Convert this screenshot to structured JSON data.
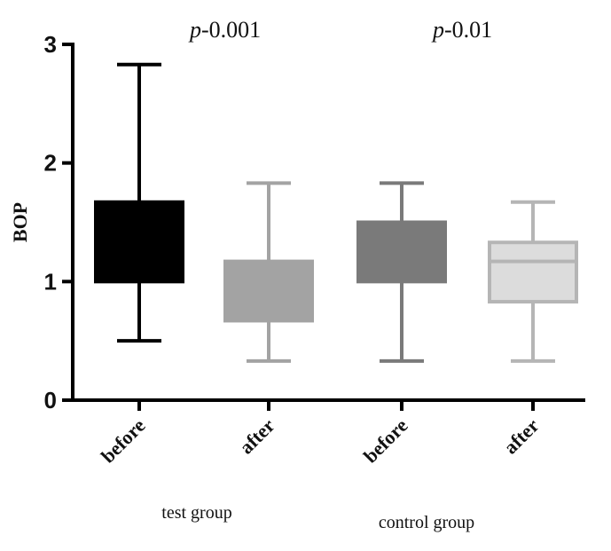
{
  "chart_data": {
    "type": "box",
    "ylabel": "BOP",
    "ylim": [
      0,
      3
    ],
    "yticks": [
      0,
      1,
      2,
      3
    ],
    "grid": false,
    "categories": [
      "before",
      "after",
      "before",
      "after"
    ],
    "groups": [
      {
        "label": "test group",
        "members": [
          0,
          1
        ]
      },
      {
        "label": "control group",
        "members": [
          2,
          3
        ]
      }
    ],
    "boxes": [
      {
        "category": "before",
        "group": "test group",
        "min": 0.5,
        "q1": 1.0,
        "median": 1.0,
        "q3": 1.67,
        "max": 2.83,
        "fill": "#000000",
        "stroke": "#000000"
      },
      {
        "category": "after",
        "group": "test group",
        "min": 0.33,
        "q1": 0.67,
        "median": 0.67,
        "q3": 1.17,
        "max": 1.83,
        "fill": "#a3a3a3",
        "stroke": "#a3a3a3"
      },
      {
        "category": "before",
        "group": "control group",
        "min": 0.33,
        "q1": 1.0,
        "median": 1.0,
        "q3": 1.5,
        "max": 1.83,
        "fill": "#7a7a7a",
        "stroke": "#7a7a7a"
      },
      {
        "category": "after",
        "group": "control group",
        "min": 0.33,
        "q1": 0.83,
        "median": 1.17,
        "q3": 1.33,
        "max": 1.67,
        "fill": "#dcdcdc",
        "stroke": "#b5b5b5"
      }
    ],
    "annotations": [
      {
        "p_symbol": "p",
        "p_value": "-0.001",
        "group": "test group"
      },
      {
        "p_symbol": "p",
        "p_value": "-0.01",
        "group": "control group"
      }
    ]
  }
}
